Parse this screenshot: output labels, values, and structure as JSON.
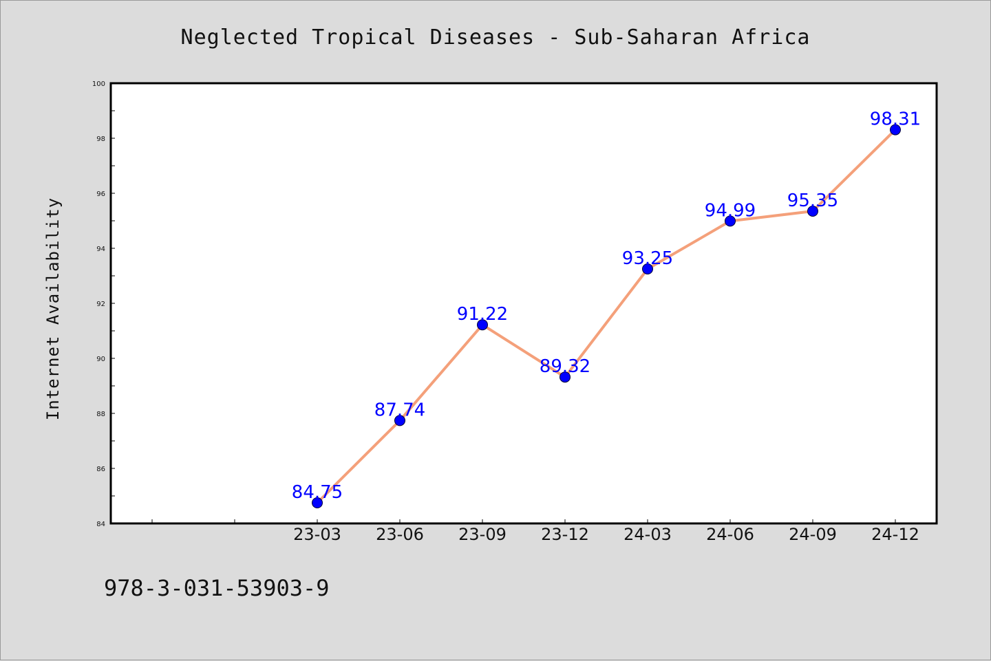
{
  "chart_data": {
    "type": "line",
    "title": "Neglected Tropical Diseases - Sub-Saharan Africa",
    "xlabel": "",
    "ylabel": "Internet Availability",
    "categories": [
      "23-03",
      "23-06",
      "23-09",
      "23-12",
      "24-03",
      "24-06",
      "24-09",
      "24-12"
    ],
    "series": [
      {
        "values": [
          84.75,
          87.74,
          91.22,
          89.32,
          93.25,
          94.99,
          95.35,
          98.31
        ]
      }
    ],
    "data_labels": [
      "84.75",
      "87.74",
      "91.22",
      "89.32",
      "93.25",
      "94.99",
      "95.35",
      "98.31"
    ],
    "ylim": [
      84,
      100
    ],
    "yticks": [
      84,
      86,
      88,
      90,
      92,
      94,
      96,
      98,
      100
    ],
    "ytick_labels": [
      "84",
      "86",
      "88",
      "90",
      "92",
      "94",
      "96",
      "98",
      "100"
    ],
    "grid": false,
    "legend": "none",
    "colors": {
      "line": "#f4a07a",
      "marker": "#0000ff",
      "data_label": "#0000ff",
      "plot_background": "#ffffff",
      "figure_background": "#dcdcdc"
    }
  },
  "footer": {
    "identifier": "978-3-031-53903-9"
  }
}
